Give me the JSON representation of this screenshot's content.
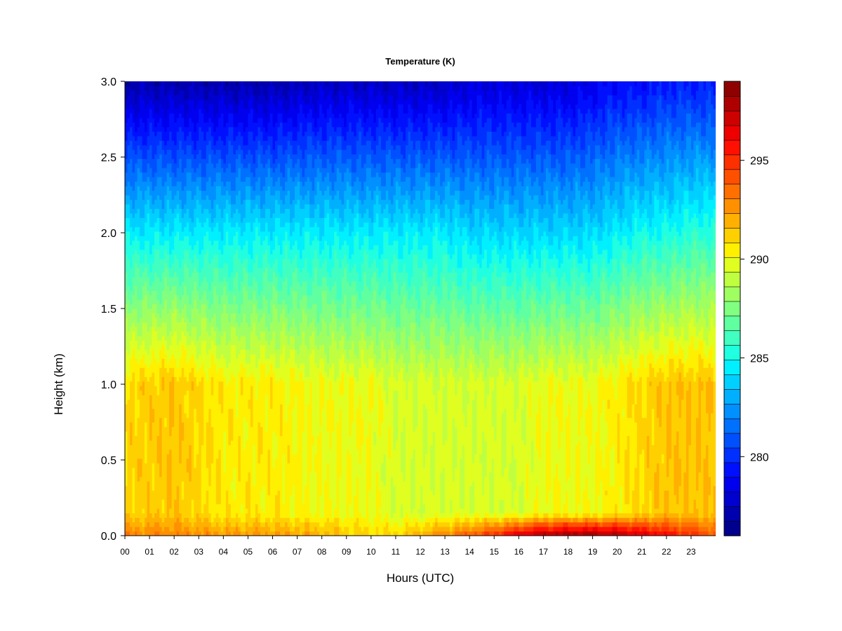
{
  "chart_data": {
    "type": "heatmap",
    "title": "Temperature (K)",
    "xlabel": "Hours (UTC)",
    "ylabel": "Height (km)",
    "xlim": [
      0,
      24
    ],
    "ylim": [
      0,
      3.0
    ],
    "x_tick_labels": [
      "00",
      "01",
      "02",
      "03",
      "04",
      "05",
      "06",
      "07",
      "08",
      "09",
      "10",
      "11",
      "12",
      "13",
      "14",
      "15",
      "16",
      "17",
      "18",
      "19",
      "20",
      "21",
      "22",
      "23"
    ],
    "y_tick_labels": [
      "0.0",
      "0.5",
      "1.0",
      "1.5",
      "2.0",
      "2.5",
      "3.0"
    ],
    "y_tick_values": [
      0.0,
      0.5,
      1.0,
      1.5,
      2.0,
      2.5,
      3.0
    ],
    "colorbar": {
      "range": [
        276,
        299
      ],
      "tick_values": [
        280,
        285,
        290,
        295
      ],
      "tick_labels": [
        "280",
        "285",
        "290",
        "295"
      ],
      "colors": [
        "#00008F",
        "#0000AF",
        "#0000CF",
        "#0000EF",
        "#0010FF",
        "#0030FF",
        "#0050FF",
        "#0070FF",
        "#0090FF",
        "#00B0FF",
        "#00D0FF",
        "#00F0FF",
        "#20FFE0",
        "#40FFC0",
        "#60FFA0",
        "#80FF80",
        "#A0FF60",
        "#C0FF40",
        "#E0FF20",
        "#FFF000",
        "#FFD000",
        "#FFB000",
        "#FF9000",
        "#FF7000",
        "#FF5000",
        "#FF3000",
        "#FF1000",
        "#EF0000",
        "#CF0000",
        "#AF0000",
        "#8F0000"
      ]
    },
    "description_values": {
      "hours": [
        0,
        2,
        4,
        6,
        8,
        10,
        11,
        12,
        13,
        14,
        15,
        16,
        17,
        18,
        19,
        20,
        21,
        22,
        23,
        24
      ],
      "surface_temperature_K": [
        293,
        293,
        292.5,
        292.5,
        292,
        291,
        291,
        292,
        293,
        294,
        295,
        297,
        298,
        298.5,
        298.5,
        298,
        297,
        296,
        295,
        294
      ],
      "temperature_1km_K": [
        291,
        291.5,
        290.5,
        290.5,
        290,
        290,
        289.5,
        289.5,
        289.5,
        289.5,
        289.5,
        289.5,
        290,
        290,
        290,
        290.5,
        291,
        291.5,
        291.5,
        291.5
      ],
      "temperature_2km_K": [
        284.5,
        284.5,
        284.5,
        284.5,
        284.5,
        284.5,
        284.5,
        284.5,
        284.5,
        284,
        284,
        284,
        284,
        284,
        284,
        284.5,
        285,
        285,
        285.5,
        285.5
      ],
      "temperature_3km_K": [
        277,
        277,
        277,
        277,
        277.5,
        277.5,
        277.5,
        277.5,
        277.5,
        278,
        278,
        278,
        278,
        278,
        278.5,
        279,
        279,
        279.5,
        279.5,
        279.5
      ]
    }
  }
}
